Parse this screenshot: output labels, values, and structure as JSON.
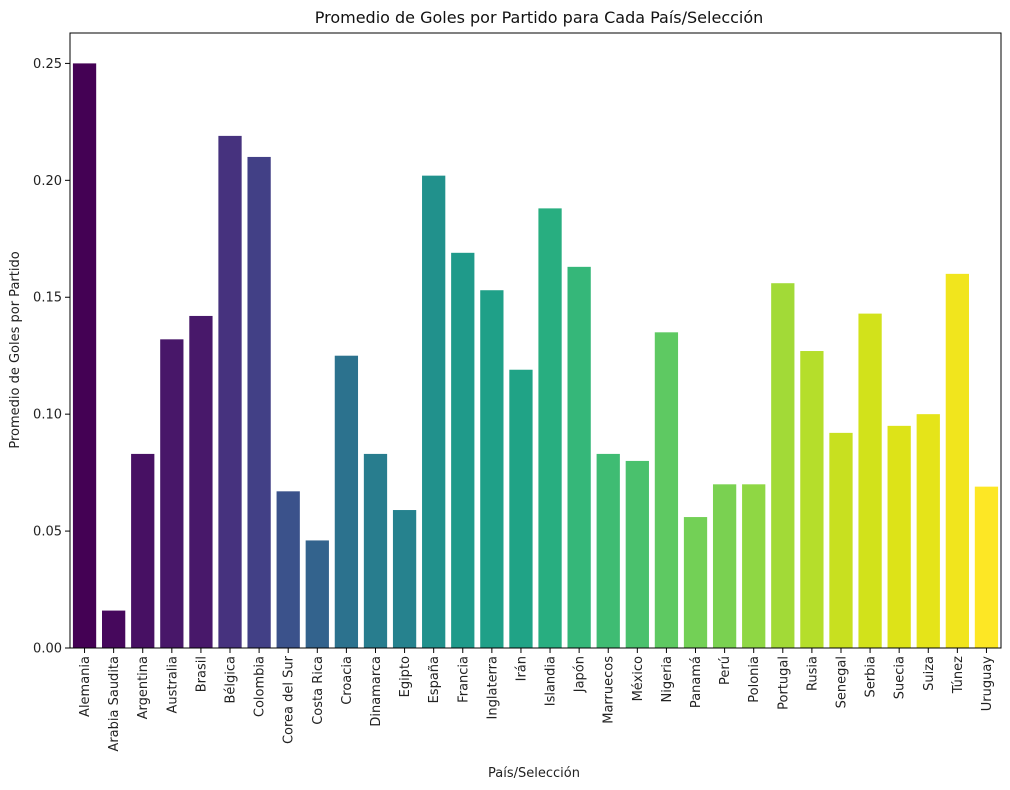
{
  "chart_data": {
    "type": "bar",
    "title": "Promedio de Goles por Partido para Cada País/Selección",
    "xlabel": "País/Selección",
    "ylabel": "Promedio de Goles por Partido",
    "ylim": [
      0,
      0.263
    ],
    "yticks": [
      "0.00",
      "0.05",
      "0.10",
      "0.15",
      "0.20",
      "0.25"
    ],
    "ytick_values": [
      0,
      0.05,
      0.1,
      0.15,
      0.2,
      0.25
    ],
    "grid": false,
    "palette": "viridis",
    "categories": [
      "Alemania",
      "Arabia Saudita",
      "Argentina",
      "Australia",
      "Brasil",
      "Bélgica",
      "Colombia",
      "Corea del Sur",
      "Costa Rica",
      "Croacia",
      "Dinamarca",
      "Egipto",
      "España",
      "Francia",
      "Inglaterra",
      "Irán",
      "Islandia",
      "Japón",
      "Marruecos",
      "México",
      "Nigeria",
      "Panamá",
      "Perú",
      "Polonia",
      "Portugal",
      "Rusia",
      "Senegal",
      "Serbia",
      "Suecia",
      "Suiza",
      "Túnez",
      "Uruguay"
    ],
    "values": [
      0.25,
      0.016,
      0.083,
      0.132,
      0.142,
      0.219,
      0.21,
      0.067,
      0.046,
      0.125,
      0.083,
      0.059,
      0.202,
      0.169,
      0.153,
      0.119,
      0.188,
      0.163,
      0.083,
      0.08,
      0.135,
      0.056,
      0.07,
      0.07,
      0.156,
      0.127,
      0.092,
      0.143,
      0.095,
      0.1,
      0.16,
      0.069
    ],
    "colors": [
      "#440154",
      "#46085c",
      "#471063",
      "#481769",
      "#48186a",
      "#46327e",
      "#424086",
      "#3b528b",
      "#33638d",
      "#2c728e",
      "#287d8e",
      "#26828e",
      "#21918c",
      "#1f9a8a",
      "#1fa088",
      "#20a386",
      "#28ae80",
      "#35b779",
      "#3fbc73",
      "#4ac16d",
      "#5ec962",
      "#73d056",
      "#7ad151",
      "#8fd744",
      "#a2da37",
      "#b5de2b",
      "#c8e020",
      "#d2e21b",
      "#dde318",
      "#e5e419",
      "#f1e51d",
      "#fde725"
    ]
  }
}
